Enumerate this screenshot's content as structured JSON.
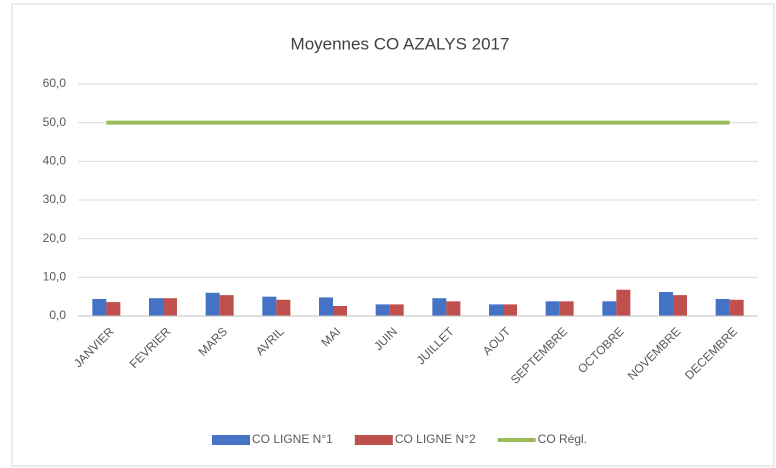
{
  "chart_data": {
    "type": "bar",
    "title": "Moyennes CO AZALYS 2017",
    "categories": [
      "JANVIER",
      "FEVRIER",
      "MARS",
      "AVRIL",
      "MAI",
      "JUIN",
      "JUILLET",
      "AOUT",
      "SEPTEMBRE",
      "OCTOBRE",
      "NOVEMBRE",
      "DECEMBRE"
    ],
    "series": [
      {
        "name": "CO LIGNE N°1",
        "type": "bar",
        "color": "#4472c4",
        "values": [
          4.4,
          4.6,
          6.0,
          5.0,
          4.8,
          3.0,
          4.6,
          3.0,
          3.8,
          3.8,
          6.2,
          4.4
        ]
      },
      {
        "name": "CO LIGNE N°2",
        "type": "bar",
        "color": "#c0504d",
        "values": [
          3.6,
          4.6,
          5.4,
          4.2,
          2.6,
          3.0,
          3.8,
          3.0,
          3.8,
          6.8,
          5.4,
          4.2
        ]
      },
      {
        "name": "CO Régl.",
        "type": "line",
        "color": "#9bbb59",
        "values": [
          50,
          50,
          50,
          50,
          50,
          50,
          50,
          50,
          50,
          50,
          50,
          50
        ]
      }
    ],
    "ylim": [
      0,
      60
    ],
    "yticks": [
      {
        "value": 0,
        "label": "0,0"
      },
      {
        "value": 10,
        "label": "10,0"
      },
      {
        "value": 20,
        "label": "20,0"
      },
      {
        "value": 30,
        "label": "30,0"
      },
      {
        "value": 40,
        "label": "40,0"
      },
      {
        "value": 50,
        "label": "50,0"
      },
      {
        "value": 60,
        "label": "60,0"
      }
    ],
    "grid": true,
    "legend": "bottom"
  }
}
